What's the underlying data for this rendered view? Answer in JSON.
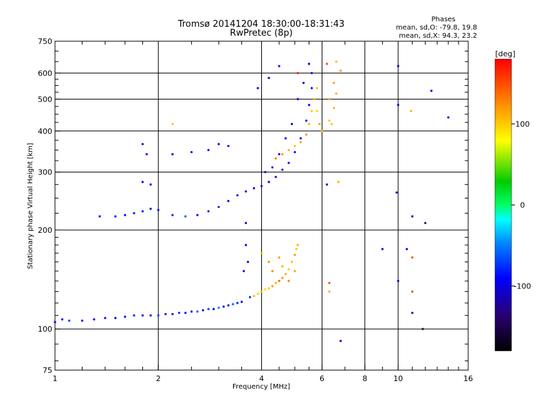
{
  "chart_data": {
    "type": "scatter",
    "title": "Tromsø 20141204 18:30:00-18:31:43",
    "subtitle": "RwPretec (8p)",
    "phases_box": {
      "heading": "Phases",
      "line1": "mean, sd,O: -79.8, 19.8",
      "line2": "mean, sd,X:  94.3, 23.2"
    },
    "xlabel": "Frequency [MHz]",
    "ylabel": "Stationary phase Virtual Height [km]",
    "x_scale": "log",
    "y_scale": "log",
    "xlim": [
      1,
      16
    ],
    "ylim": [
      75,
      750
    ],
    "xticks": [
      1,
      2,
      4,
      6,
      8,
      10,
      16
    ],
    "yticks": [
      75,
      100,
      200,
      300,
      400,
      500,
      600,
      750
    ],
    "x_grid": [
      2,
      4,
      6,
      8,
      10
    ],
    "y_grid": [
      100,
      200,
      300,
      400,
      500,
      600
    ],
    "colorbar": {
      "label": "[deg]",
      "range": [
        -180,
        180
      ],
      "ticks": [
        100,
        0,
        -100
      ]
    },
    "series": [
      {
        "points": [
          [
            1.0,
            105,
            -90
          ],
          [
            1.05,
            107,
            -90
          ],
          [
            1.1,
            106,
            -70
          ],
          [
            1.2,
            106,
            -85
          ],
          [
            1.3,
            107,
            -90
          ],
          [
            1.4,
            108,
            -85
          ],
          [
            1.5,
            108,
            -90
          ],
          [
            1.6,
            109,
            -95
          ],
          [
            1.7,
            110,
            -80
          ],
          [
            1.8,
            110,
            -100
          ],
          [
            1.9,
            110,
            -90
          ],
          [
            2.0,
            110,
            -70
          ],
          [
            2.1,
            111,
            -85
          ],
          [
            2.2,
            111,
            -90
          ],
          [
            2.3,
            112,
            -75
          ],
          [
            2.4,
            112,
            -95
          ],
          [
            2.5,
            113,
            -85
          ],
          [
            2.6,
            113,
            -60
          ],
          [
            2.7,
            114,
            -90
          ],
          [
            2.8,
            115,
            -70
          ],
          [
            2.9,
            115,
            -95
          ],
          [
            3.0,
            116,
            -50
          ],
          [
            3.1,
            117,
            -90
          ],
          [
            3.2,
            118,
            -100
          ],
          [
            3.3,
            119,
            -60
          ],
          [
            3.4,
            120,
            -80
          ],
          [
            3.5,
            121,
            -95
          ],
          [
            3.55,
            150,
            -100
          ],
          [
            3.6,
            180,
            -105
          ],
          [
            3.6,
            210,
            -105
          ],
          [
            3.65,
            160,
            -95
          ],
          [
            3.7,
            125,
            -75
          ],
          [
            3.8,
            126,
            110
          ],
          [
            3.9,
            128,
            100
          ],
          [
            4.0,
            130,
            105
          ],
          [
            4.1,
            132,
            95
          ],
          [
            4.2,
            133,
            100
          ],
          [
            4.3,
            135,
            120
          ],
          [
            4.4,
            138,
            110
          ],
          [
            4.5,
            140,
            140
          ],
          [
            4.6,
            143,
            120
          ],
          [
            4.7,
            147,
            110
          ],
          [
            4.8,
            152,
            100
          ],
          [
            4.9,
            160,
            105
          ],
          [
            5.0,
            168,
            120
          ],
          [
            5.05,
            175,
            100
          ],
          [
            5.1,
            180,
            110
          ],
          [
            4.5,
            165,
            120
          ],
          [
            4.3,
            150,
            130
          ],
          [
            4.0,
            170,
            110
          ],
          [
            4.2,
            160,
            125
          ],
          [
            4.6,
            155,
            110
          ],
          [
            4.8,
            140,
            130
          ],
          [
            5.0,
            150,
            115
          ],
          [
            1.35,
            220,
            -90
          ],
          [
            1.5,
            220,
            -85
          ],
          [
            1.6,
            222,
            -90
          ],
          [
            1.7,
            225,
            -80
          ],
          [
            1.8,
            228,
            -95
          ],
          [
            1.9,
            232,
            -90
          ],
          [
            2.0,
            230,
            -85
          ],
          [
            2.2,
            222,
            -80
          ],
          [
            2.4,
            220,
            -60
          ],
          [
            2.6,
            222,
            -90
          ],
          [
            2.8,
            228,
            -85
          ],
          [
            3.0,
            235,
            -80
          ],
          [
            3.2,
            245,
            -95
          ],
          [
            3.4,
            255,
            -90
          ],
          [
            3.6,
            262,
            -100
          ],
          [
            3.8,
            268,
            -95
          ],
          [
            4.0,
            272,
            -95
          ],
          [
            4.2,
            280,
            -100
          ],
          [
            4.4,
            290,
            -90
          ],
          [
            4.6,
            305,
            -95
          ],
          [
            4.8,
            320,
            -85
          ],
          [
            5.0,
            345,
            -95
          ],
          [
            5.2,
            380,
            -90
          ],
          [
            5.4,
            430,
            -85
          ],
          [
            5.5,
            480,
            -90
          ],
          [
            5.6,
            540,
            -100
          ],
          [
            5.6,
            600,
            -95
          ],
          [
            5.5,
            640,
            -90
          ],
          [
            5.3,
            560,
            -95
          ],
          [
            5.1,
            500,
            -90
          ],
          [
            4.9,
            420,
            -100
          ],
          [
            4.7,
            380,
            -95
          ],
          [
            4.5,
            340,
            -90
          ],
          [
            4.3,
            310,
            -95
          ],
          [
            4.1,
            300,
            -90
          ],
          [
            4.4,
            330,
            130
          ],
          [
            4.6,
            340,
            120
          ],
          [
            4.8,
            350,
            110
          ],
          [
            5.0,
            360,
            105
          ],
          [
            5.2,
            370,
            115
          ],
          [
            5.4,
            390,
            120
          ],
          [
            5.5,
            420,
            110
          ],
          [
            5.6,
            460,
            100
          ],
          [
            5.7,
            500,
            110
          ],
          [
            5.8,
            540,
            105
          ],
          [
            5.8,
            460,
            95
          ],
          [
            5.9,
            420,
            115
          ],
          [
            6.0,
            400,
            110
          ],
          [
            6.3,
            430,
            100
          ],
          [
            6.5,
            470,
            105
          ],
          [
            6.6,
            520,
            110
          ],
          [
            6.5,
            560,
            120
          ],
          [
            6.3,
            500,
            115
          ],
          [
            6.4,
            420,
            100
          ],
          [
            1.8,
            280,
            -95
          ],
          [
            1.9,
            275,
            -90
          ],
          [
            1.8,
            365,
            -95
          ],
          [
            1.85,
            340,
            -90
          ],
          [
            2.2,
            340,
            -100
          ],
          [
            2.5,
            345,
            -95
          ],
          [
            2.8,
            350,
            -90
          ],
          [
            2.2,
            420,
            100
          ],
          [
            3.0,
            365,
            -95
          ],
          [
            3.2,
            360,
            -85
          ],
          [
            3.9,
            540,
            -95
          ],
          [
            4.2,
            580,
            -100
          ],
          [
            4.5,
            630,
            -85
          ],
          [
            5.1,
            600,
            170
          ],
          [
            6.2,
            640,
            150
          ],
          [
            6.6,
            650,
            105
          ],
          [
            6.8,
            610,
            120
          ],
          [
            10.0,
            630,
            -100
          ],
          [
            10.0,
            480,
            -90
          ],
          [
            10.9,
            460,
            110
          ],
          [
            12.5,
            530,
            -100
          ],
          [
            14.0,
            440,
            -95
          ],
          [
            9.9,
            260,
            -100
          ],
          [
            11.0,
            220,
            -110
          ],
          [
            12.0,
            210,
            -120
          ],
          [
            9.0,
            175,
            -100
          ],
          [
            10.6,
            175,
            -90
          ],
          [
            11.0,
            165,
            150
          ],
          [
            10.0,
            140,
            -90
          ],
          [
            11.0,
            130,
            150
          ],
          [
            11.0,
            112,
            -120
          ],
          [
            11.8,
            100,
            -150
          ],
          [
            6.3,
            130,
            110
          ],
          [
            6.3,
            138,
            150
          ],
          [
            6.8,
            92,
            -90
          ],
          [
            6.2,
            275,
            -100
          ],
          [
            6.7,
            280,
            110
          ]
        ]
      }
    ]
  }
}
